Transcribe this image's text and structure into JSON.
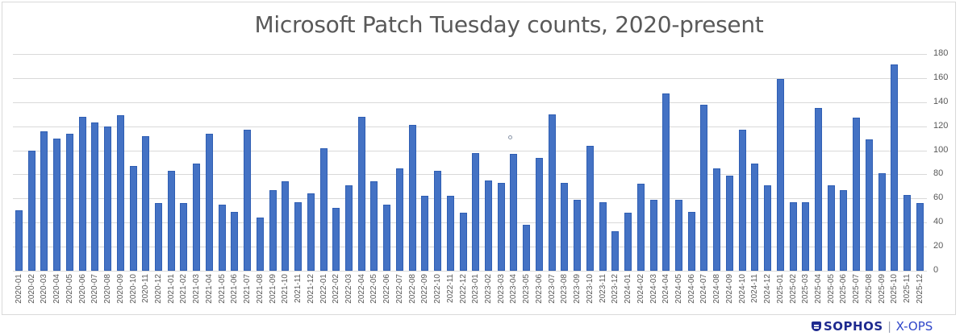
{
  "chart_data": {
    "type": "bar",
    "title": "Microsoft Patch Tuesday counts, 2020-present",
    "xlabel": "",
    "ylabel": "",
    "ylim": [
      0,
      180
    ],
    "yticks": [
      0,
      20,
      40,
      60,
      80,
      100,
      120,
      140,
      160,
      180
    ],
    "y_axis_position": "right",
    "grid": true,
    "legend": null,
    "bar_color": "#4472c4",
    "categories": [
      "2020-01",
      "2020-02",
      "2020-03",
      "2020-04",
      "2020-05",
      "2020-06",
      "2020-07",
      "2020-08",
      "2020-09",
      "2020-10",
      "2020-11",
      "2020-12",
      "2021-01",
      "2021-02",
      "2021-03",
      "2021-04",
      "2021-05",
      "2021-06",
      "2021-07",
      "2021-08",
      "2021-09",
      "2021-10",
      "2021-11",
      "2021-12",
      "2022-01",
      "2022-02",
      "2022-03",
      "2022-04",
      "2022-05",
      "2022-06",
      "2022-07",
      "2022-08",
      "2022-09",
      "2022-10",
      "2022-11",
      "2022-12",
      "2023-01",
      "2023-02",
      "2023-03",
      "2023-04",
      "2023-05",
      "2023-06",
      "2023-07",
      "2023-08",
      "2023-09",
      "2023-10",
      "2023-11",
      "2023-12",
      "2024-01",
      "2024-02",
      "2024-03",
      "2024-04",
      "2024-05",
      "2024-06",
      "2024-07",
      "2024-08",
      "2024-09",
      "2024-10",
      "2024-11",
      "2024-12",
      "2025-01",
      "2025-02",
      "2025-03",
      "2025-04",
      "2025-05",
      "2025-06",
      "2025-07",
      "2025-08",
      "2025-09",
      "2025-10",
      "2025-11",
      "2025-12"
    ],
    "values": [
      50,
      100,
      116,
      110,
      114,
      128,
      123,
      120,
      129,
      87,
      112,
      56,
      83,
      56,
      89,
      114,
      55,
      49,
      117,
      44,
      67,
      74,
      57,
      64,
      102,
      52,
      71,
      128,
      74,
      55,
      85,
      121,
      62,
      83,
      62,
      48,
      98,
      75,
      73,
      97,
      38,
      94,
      130,
      73,
      59,
      104,
      57,
      33,
      48,
      72,
      59,
      147,
      59,
      49,
      138,
      85,
      79,
      117,
      89,
      71,
      159,
      57,
      57,
      135,
      71,
      67,
      127,
      109,
      81,
      171,
      63,
      56
    ]
  },
  "branding": {
    "logo_name": "SOPHOS",
    "separator": "|",
    "sub_brand": "X-OPS"
  }
}
